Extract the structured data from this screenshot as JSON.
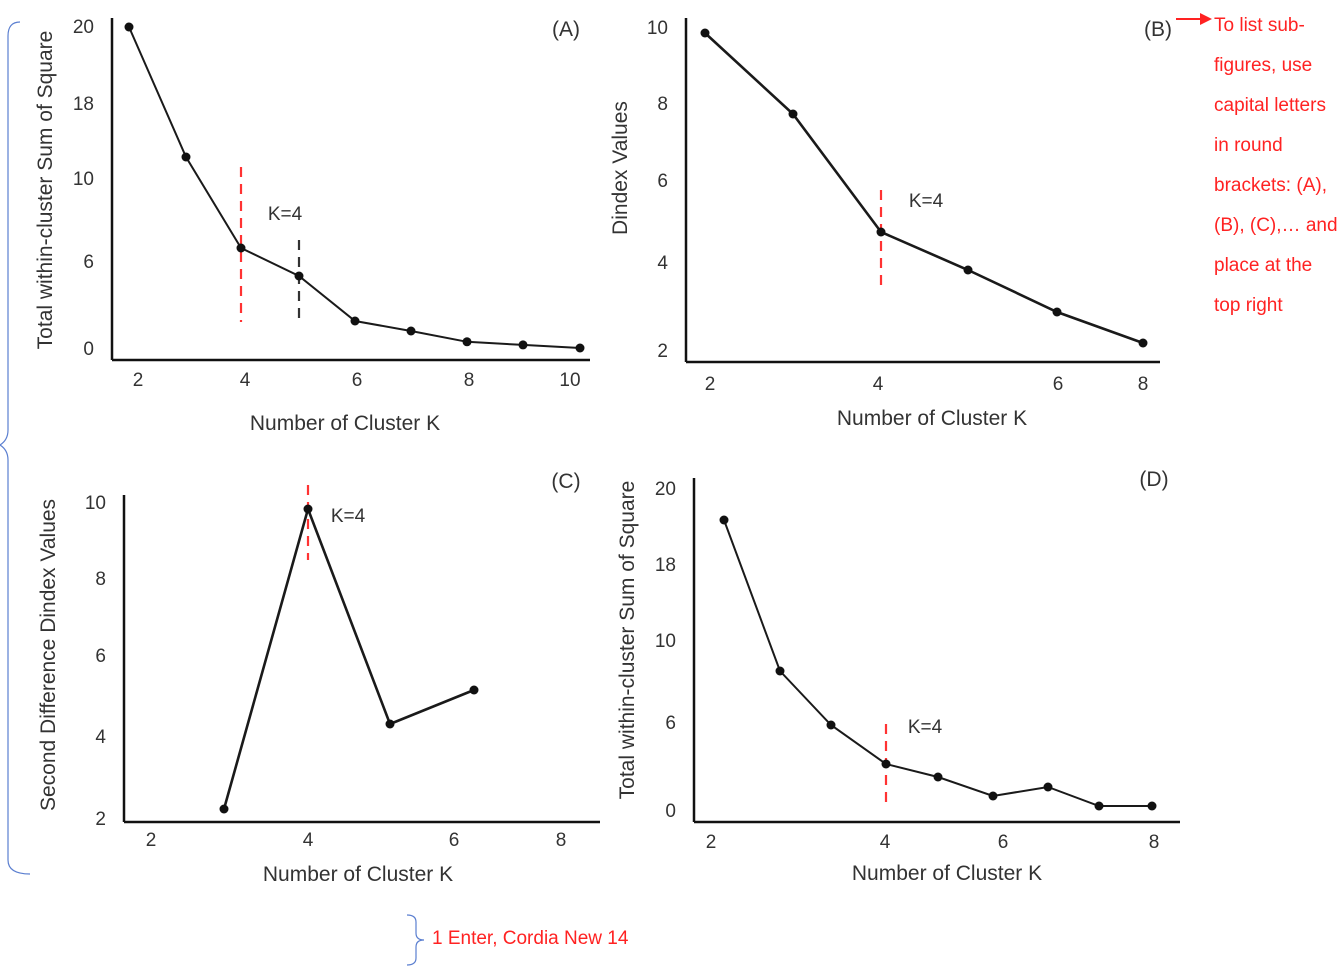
{
  "annotations": {
    "subfigure_note": "To list sub-figures, use capital letters in round brackets: (A), (B), (C),… and place at the top right",
    "spacing_note": "1 Enter, Cordia New 14",
    "note_color": "#ff2222"
  },
  "colors": {
    "line": "#1a1a1a",
    "marker_red": "#ff3333",
    "marker_black": "#333333"
  },
  "chart_data": [
    {
      "type": "line",
      "panel_label": "(A)",
      "xlabel": "Number of Cluster K",
      "ylabel": "Total within-cluster Sum of Square",
      "x_ticks": [
        2,
        4,
        6,
        8,
        10
      ],
      "y_ticks": [
        "0",
        "6",
        "10",
        "18",
        "20"
      ],
      "x": [
        1.8,
        2.8,
        3.9,
        4.9,
        5.8,
        7.0,
        7.9,
        9.0,
        10.0
      ],
      "y": [
        20.0,
        12.0,
        6.6,
        4.9,
        1.8,
        1.1,
        0.4,
        0.2,
        0.0
      ],
      "annotation": "K=4",
      "vlines": [
        {
          "x": 3.9,
          "color": "red"
        },
        {
          "x": 4.9,
          "color": "black"
        }
      ]
    },
    {
      "type": "line",
      "panel_label": "(B)",
      "xlabel": "Number of Cluster K",
      "ylabel": "Dindex Values",
      "x_ticks": [
        2,
        4,
        6,
        8
      ],
      "y_ticks": [
        "2",
        "4",
        "6",
        "8",
        "10"
      ],
      "x": [
        1.9,
        3.0,
        4.0,
        5.0,
        6.0,
        7.0
      ],
      "y": [
        9.9,
        7.7,
        4.7,
        3.7,
        2.6,
        1.7
      ],
      "annotation": "K=4",
      "vlines": [
        {
          "x": 4.0,
          "color": "red"
        }
      ]
    },
    {
      "type": "line",
      "panel_label": "(C)",
      "xlabel": "Number of Cluster K",
      "ylabel": "Second Difference Dindex Values",
      "x_ticks": [
        2,
        4,
        6,
        8
      ],
      "y_ticks": [
        "2",
        "4",
        "6",
        "8",
        "10"
      ],
      "x": [
        3.0,
        4.0,
        5.1,
        6.3
      ],
      "y": [
        2.0,
        9.9,
        4.3,
        5.2
      ],
      "annotation": "K=4",
      "vlines": [
        {
          "x": 4.0,
          "color": "red"
        }
      ]
    },
    {
      "type": "line",
      "panel_label": "(D)",
      "xlabel": "Number of Cluster K",
      "ylabel": "Total within-cluster Sum of Square",
      "x_ticks": [
        2,
        4,
        6,
        8
      ],
      "y_ticks": [
        "0",
        "6",
        "10",
        "18",
        "20"
      ],
      "x": [
        2.2,
        2.9,
        3.5,
        4.0,
        4.6,
        5.1,
        5.7,
        6.2,
        6.8
      ],
      "y": [
        17.6,
        8.2,
        5.1,
        2.9,
        2.0,
        0.8,
        1.2,
        0.2,
        0.2
      ],
      "annotation": "K=4",
      "vlines": [
        {
          "x": 4.0,
          "color": "red"
        }
      ]
    }
  ]
}
